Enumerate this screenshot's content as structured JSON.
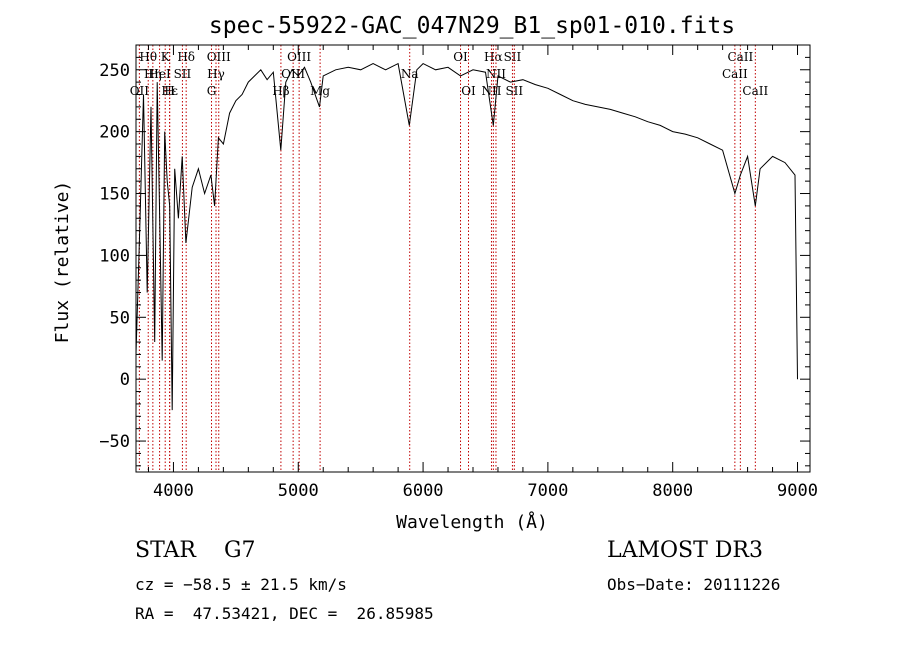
{
  "chart_data": {
    "type": "line",
    "title": "spec-55922-GAC_047N29_B1_sp01-010.fits",
    "xlabel": "Wavelength (Å)",
    "ylabel": "Flux (relative)",
    "xlim": [
      3700,
      9100
    ],
    "ylim": [
      -75,
      270
    ],
    "xticks": [
      4000,
      5000,
      6000,
      7000,
      8000,
      9000
    ],
    "yticks": [
      -50,
      0,
      50,
      100,
      150,
      200,
      250
    ],
    "x_tick_labels": [
      "4000",
      "5000",
      "6000",
      "7000",
      "8000",
      "9000"
    ],
    "y_tick_labels": [
      "−50",
      "0",
      "50",
      "100",
      "150",
      "200",
      "250"
    ],
    "series": [
      {
        "name": "flux",
        "x": [
          3700,
          3730,
          3760,
          3790,
          3820,
          3850,
          3870,
          3890,
          3910,
          3930,
          3950,
          3970,
          3990,
          4010,
          4040,
          4070,
          4100,
          4150,
          4200,
          4250,
          4300,
          4330,
          4360,
          4400,
          4450,
          4500,
          4550,
          4600,
          4650,
          4700,
          4750,
          4800,
          4860,
          4900,
          4950,
          5000,
          5050,
          5100,
          5170,
          5200,
          5300,
          5400,
          5500,
          5600,
          5700,
          5800,
          5890,
          5950,
          6000,
          6100,
          6200,
          6300,
          6400,
          6500,
          6563,
          6600,
          6700,
          6800,
          6900,
          7000,
          7100,
          7200,
          7300,
          7400,
          7500,
          7600,
          7700,
          7800,
          7900,
          8000,
          8100,
          8200,
          8300,
          8400,
          8498,
          8542,
          8600,
          8662,
          8700,
          8800,
          8900,
          8980,
          9000
        ],
        "y": [
          20,
          120,
          230,
          70,
          220,
          30,
          240,
          130,
          15,
          200,
          160,
          140,
          -25,
          170,
          130,
          180,
          110,
          155,
          170,
          150,
          165,
          140,
          195,
          190,
          215,
          225,
          230,
          240,
          245,
          250,
          242,
          248,
          185,
          240,
          250,
          245,
          252,
          240,
          220,
          245,
          250,
          252,
          250,
          255,
          250,
          255,
          205,
          250,
          255,
          250,
          252,
          245,
          250,
          248,
          205,
          245,
          240,
          242,
          238,
          235,
          230,
          225,
          222,
          220,
          218,
          215,
          212,
          208,
          205,
          200,
          198,
          195,
          190,
          185,
          150,
          165,
          180,
          140,
          170,
          180,
          175,
          165,
          0
        ]
      }
    ],
    "lines": [
      {
        "label": "Hθ",
        "wave": 3798,
        "row": 0
      },
      {
        "label": "OII",
        "wave": 3727,
        "row": 2
      },
      {
        "label": "Hη",
        "wave": 3835,
        "row": 1
      },
      {
        "label": "HeI",
        "wave": 3889,
        "row": 1
      },
      {
        "label": "K",
        "wave": 3934,
        "row": 0
      },
      {
        "label": "Hε",
        "wave": 3970,
        "row": 2
      },
      {
        "label": "H",
        "wave": 3969,
        "row": 2
      },
      {
        "label": "Hδ",
        "wave": 4102,
        "row": 0
      },
      {
        "label": "SII",
        "wave": 4072,
        "row": 1
      },
      {
        "label": "OIII",
        "wave": 4363,
        "row": 0
      },
      {
        "label": "Hγ",
        "wave": 4341,
        "row": 1
      },
      {
        "label": "G",
        "wave": 4305,
        "row": 2
      },
      {
        "label": "Hβ",
        "wave": 4861,
        "row": 2
      },
      {
        "label": "OIII",
        "wave": 5007,
        "row": 0
      },
      {
        "label": "OIII",
        "wave": 4959,
        "row": 1
      },
      {
        "label": "Mg",
        "wave": 5175,
        "row": 2
      },
      {
        "label": "Na",
        "wave": 5893,
        "row": 1
      },
      {
        "label": "OI",
        "wave": 6300,
        "row": 0
      },
      {
        "label": "OI",
        "wave": 6364,
        "row": 2
      },
      {
        "label": "Hα",
        "wave": 6563,
        "row": 0
      },
      {
        "label": "SII",
        "wave": 6716,
        "row": 0
      },
      {
        "label": "NII",
        "wave": 6584,
        "row": 1
      },
      {
        "label": "NII",
        "wave": 6548,
        "row": 2
      },
      {
        "label": "SII",
        "wave": 6731,
        "row": 2
      },
      {
        "label": "CaII",
        "wave": 8542,
        "row": 0
      },
      {
        "label": "CaII",
        "wave": 8498,
        "row": 1
      },
      {
        "label": "CaII",
        "wave": 8662,
        "row": 2
      }
    ]
  },
  "info": {
    "class": "STAR    G7",
    "survey": "LAMOST DR3",
    "cz": "cz = −58.5 ± 21.5 km/s",
    "obs_date": "Obs−Date: 20111226",
    "radec": "RA =  47.53421, DEC =  26.85985"
  }
}
